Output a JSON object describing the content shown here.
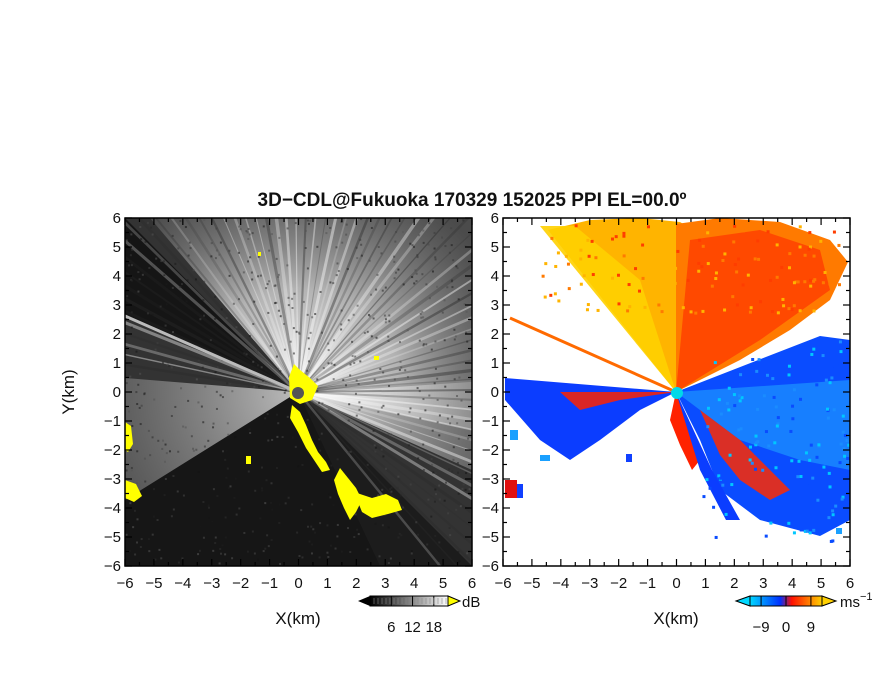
{
  "chart_data": {
    "type": "heatmap",
    "title": "3D−CDL@Fukuoka 170329 152025 PPI EL=00.0º",
    "panels": [
      {
        "name": "reflectivity-panel",
        "xlabel": "X(km)",
        "ylabel": "Y(km)",
        "xlim": [
          -6,
          6
        ],
        "ylim": [
          -6,
          6
        ],
        "xticks": [
          "−6",
          "−5",
          "−4",
          "−3",
          "−2",
          "−1",
          "0",
          "1",
          "2",
          "3",
          "4",
          "5",
          "6"
        ],
        "yticks": [
          "6",
          "5",
          "4",
          "3",
          "2",
          "1",
          "0",
          "−1",
          "−2",
          "−3",
          "−4",
          "−5",
          "−6"
        ],
        "colorbar": {
          "unit": "dB",
          "ticks": [
            {
              "value": 6,
              "label": "6"
            },
            {
              "value": 12,
              "label": "12"
            },
            {
              "value": 18,
              "label": "18"
            }
          ],
          "range": [
            0,
            22
          ],
          "colors": [
            "#000000",
            "#ffffff"
          ],
          "over_color": "#ffff00"
        }
      },
      {
        "name": "velocity-panel",
        "xlabel": "X(km)",
        "ylabel": "",
        "xlim": [
          -6,
          6
        ],
        "ylim": [
          -6,
          6
        ],
        "xticks": [
          "−6",
          "−5",
          "−4",
          "−3",
          "−2",
          "−1",
          "0",
          "1",
          "2",
          "3",
          "4",
          "5",
          "6"
        ],
        "yticks": [
          "6",
          "5",
          "4",
          "3",
          "2",
          "1",
          "0",
          "−1",
          "−2",
          "−3",
          "−4",
          "−5",
          "−6"
        ],
        "colorbar": {
          "unit": "ms",
          "unit_exponent": "−1",
          "ticks": [
            {
              "value": -9,
              "label": "−9"
            },
            {
              "value": 0,
              "label": "0"
            },
            {
              "value": 9,
              "label": "9"
            }
          ],
          "range": [
            -13,
            13
          ],
          "colors": [
            "#00d8ff",
            "#0030ff",
            "#ff1000",
            "#ffd000"
          ]
        }
      }
    ]
  }
}
